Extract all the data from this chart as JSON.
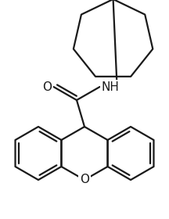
{
  "background_color": "#ffffff",
  "line_color": "#1a1a1a",
  "line_width": 1.6,
  "font_size": 11,
  "figsize": [
    2.16,
    2.8
  ],
  "dpi": 100,
  "O_label": "O",
  "NH_label": "NH",
  "xan_O_label": "O"
}
